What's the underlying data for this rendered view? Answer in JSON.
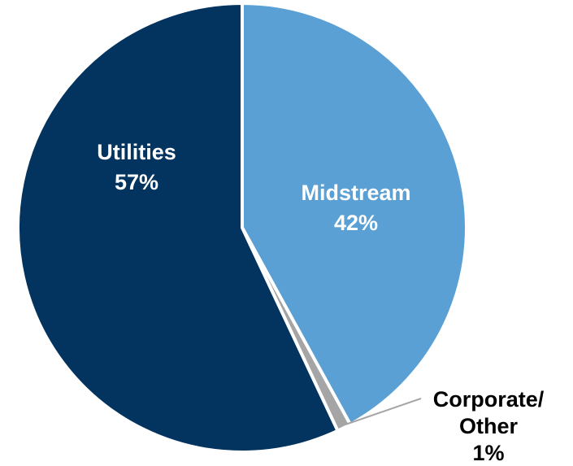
{
  "chart_data": {
    "type": "pie",
    "categories": [
      "Midstream",
      "Corporate/ Other",
      "Utilities"
    ],
    "values": [
      42,
      1,
      57
    ],
    "value_labels": [
      "42%",
      "1%",
      "57%"
    ],
    "colors": [
      "#5aa0d4",
      "#a5a5a5",
      "#03335f"
    ],
    "start_angle_deg": 0,
    "direction": "clockwise",
    "legend": "none",
    "labels": {
      "midstream": {
        "name": "Midstream",
        "value": "42%"
      },
      "corporate": {
        "line1": "Corporate/",
        "line2": "Other",
        "value": "1%"
      },
      "utilities": {
        "name": "Utilities",
        "value": "57%"
      }
    }
  }
}
